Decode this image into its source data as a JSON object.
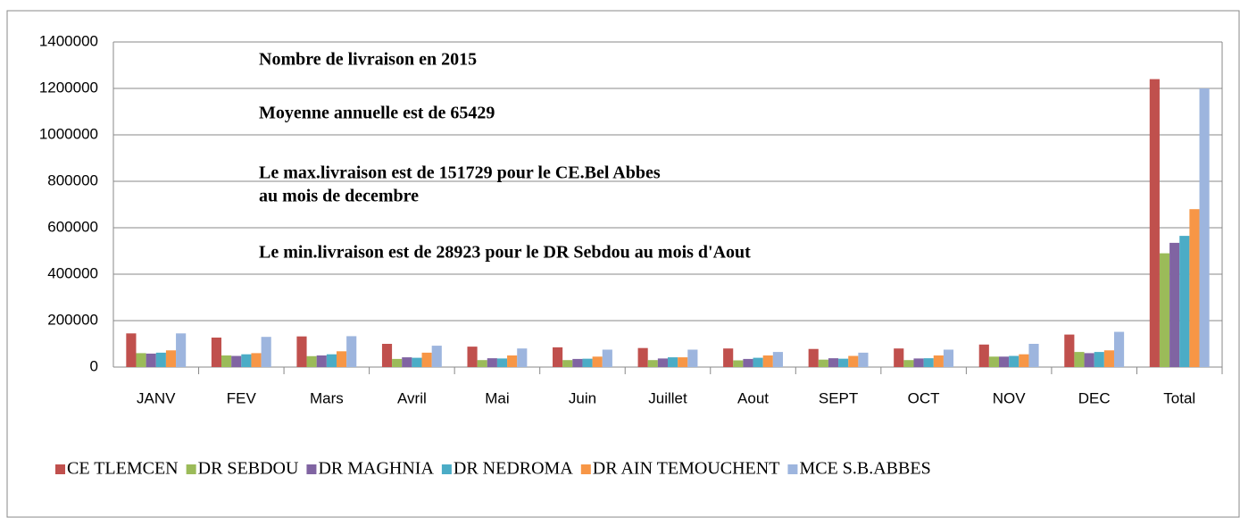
{
  "chart_data": {
    "type": "bar",
    "annotations": [
      "Nombre de livraison en 2015",
      "Moyenne annuelle est de 65429",
      "Le max.livraison est de 151729 pour le CE.Bel Abbes",
      "au mois de decembre",
      "Le min.livraison est de 28923 pour le DR Sebdou au mois d'Aout"
    ],
    "categories": [
      "JANV",
      "FEV",
      "Mars",
      "Avril",
      "Mai",
      "Juin",
      "Juillet",
      "Aout",
      "SEPT",
      "OCT",
      "NOV",
      "DEC",
      "Total"
    ],
    "series": [
      {
        "name": "CE TLEMCEN",
        "color": "#c0504d",
        "values": [
          145000,
          127000,
          132000,
          100000,
          88000,
          85000,
          82000,
          80000,
          78000,
          80000,
          97000,
          140000,
          1240000
        ]
      },
      {
        "name": "DR SEBDOU",
        "color": "#9bbb59",
        "values": [
          60000,
          50000,
          47000,
          35000,
          30000,
          30000,
          30000,
          28923,
          32000,
          30000,
          45000,
          65000,
          490000
        ]
      },
      {
        "name": "DR MAGHNIA",
        "color": "#8064a2",
        "values": [
          58000,
          48000,
          50000,
          42000,
          38000,
          35000,
          37000,
          35000,
          38000,
          37000,
          45000,
          60000,
          535000
        ]
      },
      {
        "name": "DR NEDROMA",
        "color": "#4bacc6",
        "values": [
          62000,
          55000,
          55000,
          40000,
          37000,
          36000,
          42000,
          40000,
          36000,
          38000,
          48000,
          65000,
          565000
        ]
      },
      {
        "name": "DR AIN TEMOUCHENT",
        "color": "#f79646",
        "values": [
          72000,
          60000,
          68000,
          62000,
          50000,
          45000,
          42000,
          50000,
          48000,
          50000,
          55000,
          72000,
          680000
        ]
      },
      {
        "name": "MCE S.B.ABBES",
        "color": "#9db5de",
        "values": [
          145000,
          130000,
          133000,
          92000,
          80000,
          75000,
          75000,
          65000,
          62000,
          75000,
          100000,
          151729,
          1200000
        ]
      }
    ],
    "ylim": [
      0,
      1400000
    ],
    "yticks": [
      0,
      200000,
      400000,
      600000,
      800000,
      1000000,
      1200000,
      1400000
    ],
    "grid": true,
    "legend": "bottom"
  }
}
